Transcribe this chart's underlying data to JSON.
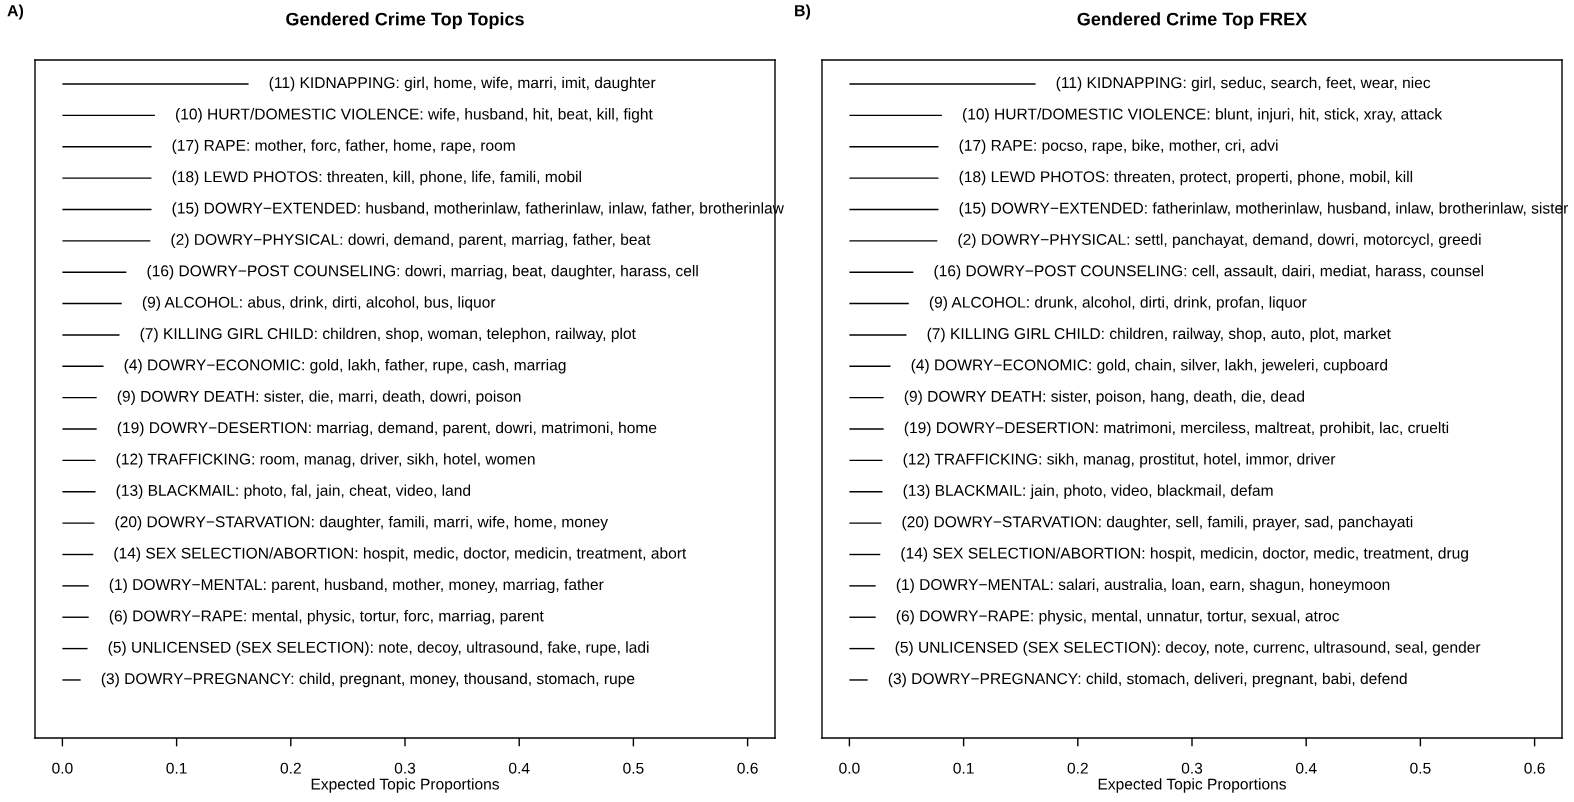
{
  "chart_data": [
    {
      "type": "bar",
      "orientation": "horizontal",
      "title": "Gendered Crime Top Topics",
      "xlabel": "Expected Topic Proportions",
      "annotations": [
        "A)"
      ],
      "color": "#000000",
      "categories": [
        "(11) KIDNAPPING: girl, home, wife, marri, imit, daughter",
        "(10) HURT/DOMESTIC VIOLENCE: wife, husband, hit, beat, kill, fight",
        "(17) RAPE: mother, forc, father, home, rape, room",
        "(18) LEWD PHOTOS: threaten, kill, phone, life, famili, mobil",
        "(15) DOWRY−EXTENDED: husband, motherinlaw, fatherinlaw, inlaw, father, brotherinlaw",
        "(2) DOWRY−PHYSICAL: dowri, demand, parent, marriag, father, beat",
        "(16) DOWRY−POST COUNSELING: dowri, marriag, beat, daughter, harass, cell",
        "(9) ALCOHOL: abus, drink, dirti, alcohol, bus, liquor",
        "(7) KILLING GIRL CHILD: children, shop, woman, telephon, railway, plot",
        "(4) DOWRY−ECONOMIC: gold, lakh, father, rupe, cash, marriag",
        "(9) DOWRY DEATH: sister, die, marri, death, dowri, poison",
        "(19) DOWRY−DESERTION: marriag, demand, parent, dowri, matrimoni, home",
        "(12) TRAFFICKING: room, manag, driver, sikh, hotel, women",
        "(13) BLACKMAIL: photo, fal, jain, cheat, video, land",
        "(20) DOWRY−STARVATION: daughter, famili, marri, wife, home, money",
        "(14) SEX SELECTION/ABORTION: hospit, medic, doctor, medicin, treatment, abort",
        "(1) DOWRY−MENTAL: parent, husband, mother, money, marriag, father",
        "(6) DOWRY−RAPE: mental, physic, tortur, forc, marriag, parent",
        "(5) UNLICENSED (SEX SELECTION): note, decoy, ultrasound, fake, rupe, ladi",
        "(3) DOWRY−PREGNANCY: child, pregnant, money, thousand, stomach, rupe"
      ],
      "values": [
        0.163,
        0.081,
        0.078,
        0.078,
        0.078,
        0.077,
        0.056,
        0.052,
        0.05,
        0.036,
        0.03,
        0.03,
        0.029,
        0.029,
        0.028,
        0.027,
        0.023,
        0.023,
        0.022,
        0.016
      ],
      "xlim": [
        -0.024,
        0.624
      ],
      "xticks": [
        {
          "value": 0,
          "label": "0.0"
        },
        0.1,
        0.2,
        0.3,
        0.4,
        0.5,
        0.6
      ]
    },
    {
      "type": "bar",
      "orientation": "horizontal",
      "title": "Gendered Crime Top FREX",
      "xlabel": "Expected Topic Proportions",
      "annotations": [
        "B)"
      ],
      "color": "#000000",
      "categories": [
        "(11) KIDNAPPING: girl, seduc, search, feet, wear, niec",
        "(10) HURT/DOMESTIC VIOLENCE: blunt, injuri, hit, stick, xray, attack",
        "(17) RAPE: pocso, rape, bike, mother, cri, advi",
        "(18) LEWD PHOTOS: threaten, protect, properti, phone, mobil, kill",
        "(15) DOWRY−EXTENDED: fatherinlaw, motherinlaw, husband, inlaw, brotherinlaw, sister",
        "(2) DOWRY−PHYSICAL: settl, panchayat, demand, dowri, motorcycl, greedi",
        "(16) DOWRY−POST COUNSELING: cell, assault, dairi, mediat, harass, counsel",
        "(9) ALCOHOL: drunk, alcohol, dirti, drink, profan, liquor",
        "(7) KILLING GIRL CHILD: children, railway, shop, auto, plot, market",
        "(4) DOWRY−ECONOMIC: gold, chain, silver, lakh, jeweleri, cupboard",
        "(9) DOWRY DEATH: sister, poison, hang, death, die, dead",
        "(19) DOWRY−DESERTION: matrimoni, merciless, maltreat, prohibit, lac, cruelti",
        "(12) TRAFFICKING: sikh, manag, prostitut, hotel, immor, driver",
        "(13) BLACKMAIL: jain, photo, video, blackmail, defam",
        "(20) DOWRY−STARVATION: daughter, sell, famili, prayer, sad, panchayati",
        "(14) SEX SELECTION/ABORTION: hospit, medicin, doctor, medic, treatment, drug",
        "(1) DOWRY−MENTAL: salari, australia, loan, earn, shagun, honeymoon",
        "(6) DOWRY−RAPE: physic, mental, unnatur, tortur, sexual, atroc",
        "(5) UNLICENSED (SEX SELECTION): decoy, note, currenc, ultrasound, seal, gender",
        "(3) DOWRY−PREGNANCY: child, stomach, deliveri, pregnant, babi, defend"
      ],
      "values": [
        0.163,
        0.081,
        0.078,
        0.078,
        0.078,
        0.077,
        0.056,
        0.052,
        0.05,
        0.036,
        0.03,
        0.03,
        0.029,
        0.029,
        0.028,
        0.027,
        0.023,
        0.023,
        0.022,
        0.016
      ],
      "xlim": [
        -0.024,
        0.624
      ],
      "xticks": [
        {
          "value": 0,
          "label": "0.0"
        },
        0.1,
        0.2,
        0.3,
        0.4,
        0.5,
        0.6
      ]
    }
  ]
}
